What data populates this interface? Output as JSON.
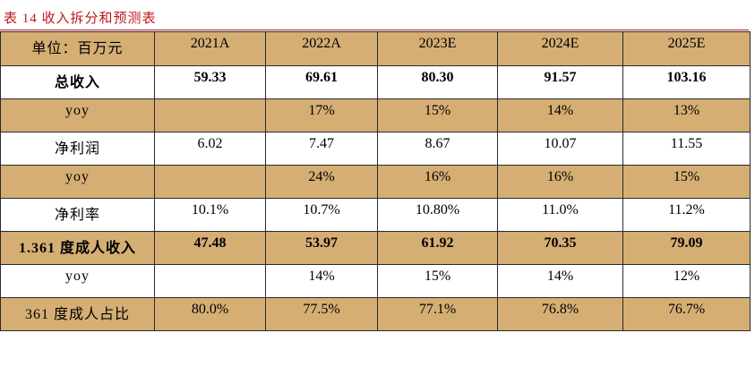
{
  "caption": "表 14 收入拆分和预测表",
  "header": [
    "单位：百万元",
    "2021A",
    "2022A",
    "2023E",
    "2024E",
    "2025E"
  ],
  "rows": [
    {
      "label": "总收入",
      "values": [
        "59.33",
        "69.61",
        "80.30",
        "91.57",
        "103.16"
      ],
      "style": "plain bold"
    },
    {
      "label": "yoy",
      "values": [
        "",
        "17%",
        "15%",
        "14%",
        "13%"
      ],
      "style": "shade"
    },
    {
      "label": "净利润",
      "values": [
        "6.02",
        "7.47",
        "8.67",
        "10.07",
        "11.55"
      ],
      "style": "plain"
    },
    {
      "label": "yoy",
      "values": [
        "",
        "24%",
        "16%",
        "16%",
        "15%"
      ],
      "style": "shade"
    },
    {
      "label": "净利率",
      "values": [
        "10.1%",
        "10.7%",
        "10.80%",
        "11.0%",
        "11.2%"
      ],
      "style": "plain"
    },
    {
      "label": "1.361 度成人收入",
      "values": [
        "47.48",
        "53.97",
        "61.92",
        "70.35",
        "79.09"
      ],
      "style": "shade bold"
    },
    {
      "label": "yoy",
      "values": [
        "",
        "14%",
        "15%",
        "14%",
        "12%"
      ],
      "style": "plain"
    },
    {
      "label": "361 度成人占比",
      "values": [
        "80.0%",
        "77.5%",
        "77.1%",
        "76.8%",
        "76.7%"
      ],
      "style": "shade"
    }
  ],
  "colors": {
    "caption": "#c0171f",
    "shade": "#d5ae74",
    "border": "#2a2a2a"
  }
}
